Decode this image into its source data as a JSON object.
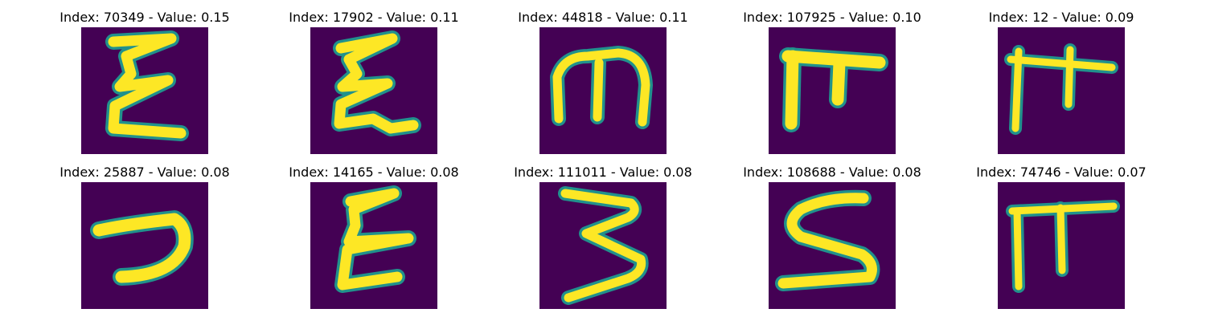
{
  "panels": [
    {
      "title": "Index: 70349 - Value: 0.15"
    },
    {
      "title": "Index: 17902 - Value: 0.11"
    },
    {
      "title": "Index: 44818 - Value: 0.11"
    },
    {
      "title": "Index: 107925 - Value: 0.10"
    },
    {
      "title": "Index: 12 - Value: 0.09"
    },
    {
      "title": "Index: 25887 - Value: 0.08"
    },
    {
      "title": "Index: 14165 - Value: 0.08"
    },
    {
      "title": "Index: 111011 - Value: 0.08"
    },
    {
      "title": "Index: 108688 - Value: 0.08"
    },
    {
      "title": "Index: 74746 - Value: 0.07"
    }
  ],
  "colors": {
    "background": "#440154",
    "edge": "#21918c",
    "stroke": "#fde725"
  }
}
